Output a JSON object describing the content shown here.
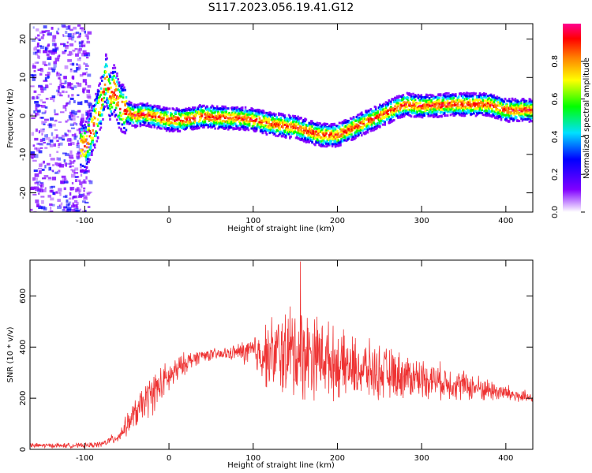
{
  "chart_data": [
    {
      "type": "heatmap",
      "title": "S117.2023.056.19.41.G12",
      "xlabel": "Height of straight line (km)",
      "ylabel": "Frequency (Hz)",
      "xlim": [
        -165,
        432
      ],
      "ylim": [
        -25,
        24
      ],
      "xticks": [
        -100,
        0,
        100,
        200,
        300,
        400
      ],
      "yticks": [
        -20,
        -10,
        0,
        10,
        20
      ],
      "colorbar": {
        "label": "Normalized spectral amplitude",
        "range": [
          0,
          1
        ],
        "ticks": [
          0.0,
          0.2,
          0.4,
          0.6,
          0.8
        ],
        "colors": [
          "#ffffff",
          "#8000ff",
          "#0000ff",
          "#00e0ff",
          "#00ff00",
          "#ffff00",
          "#ff8000",
          "#ff0000",
          "#ff0090"
        ]
      },
      "ridge": {
        "x": [
          -100,
          -90,
          -80,
          -75,
          -70,
          -65,
          -60,
          -50,
          -40,
          -30,
          -20,
          0,
          20,
          40,
          60,
          80,
          100,
          120,
          150,
          180,
          200,
          220,
          250,
          280,
          300,
          340,
          380,
          400,
          432
        ],
        "y": [
          -8,
          -3,
          4,
          10,
          5,
          7,
          3,
          1,
          0,
          0.5,
          0,
          -1,
          -1,
          0,
          -0.5,
          -0.5,
          -1,
          -2,
          -3,
          -5,
          -5,
          -3,
          0,
          3,
          2.5,
          3,
          3,
          1.5,
          1.5
        ]
      },
      "grid": false
    },
    {
      "type": "line",
      "xlabel": "Height of straight line (km)",
      "ylabel": "SNR (10 * v/v)",
      "xlim": [
        -165,
        432
      ],
      "ylim": [
        0,
        740
      ],
      "xticks": [
        -100,
        0,
        100,
        200,
        300,
        400
      ],
      "yticks": [
        0,
        200,
        400,
        600
      ],
      "color": "#ee3333",
      "envelope": {
        "x": [
          -165,
          -100,
          -80,
          -60,
          -40,
          -20,
          0,
          20,
          40,
          60,
          80,
          100,
          120,
          150,
          180,
          200,
          250,
          300,
          350,
          400,
          432
        ],
        "mean": [
          15,
          15,
          20,
          50,
          140,
          220,
          280,
          340,
          370,
          370,
          380,
          380,
          370,
          380,
          370,
          330,
          300,
          280,
          250,
          220,
          195
        ],
        "spread": [
          8,
          8,
          10,
          20,
          50,
          70,
          55,
          35,
          20,
          20,
          25,
          60,
          120,
          170,
          130,
          110,
          90,
          65,
          50,
          30,
          20
        ]
      },
      "peak": {
        "x": 156,
        "y": 735
      },
      "grid": false
    }
  ]
}
